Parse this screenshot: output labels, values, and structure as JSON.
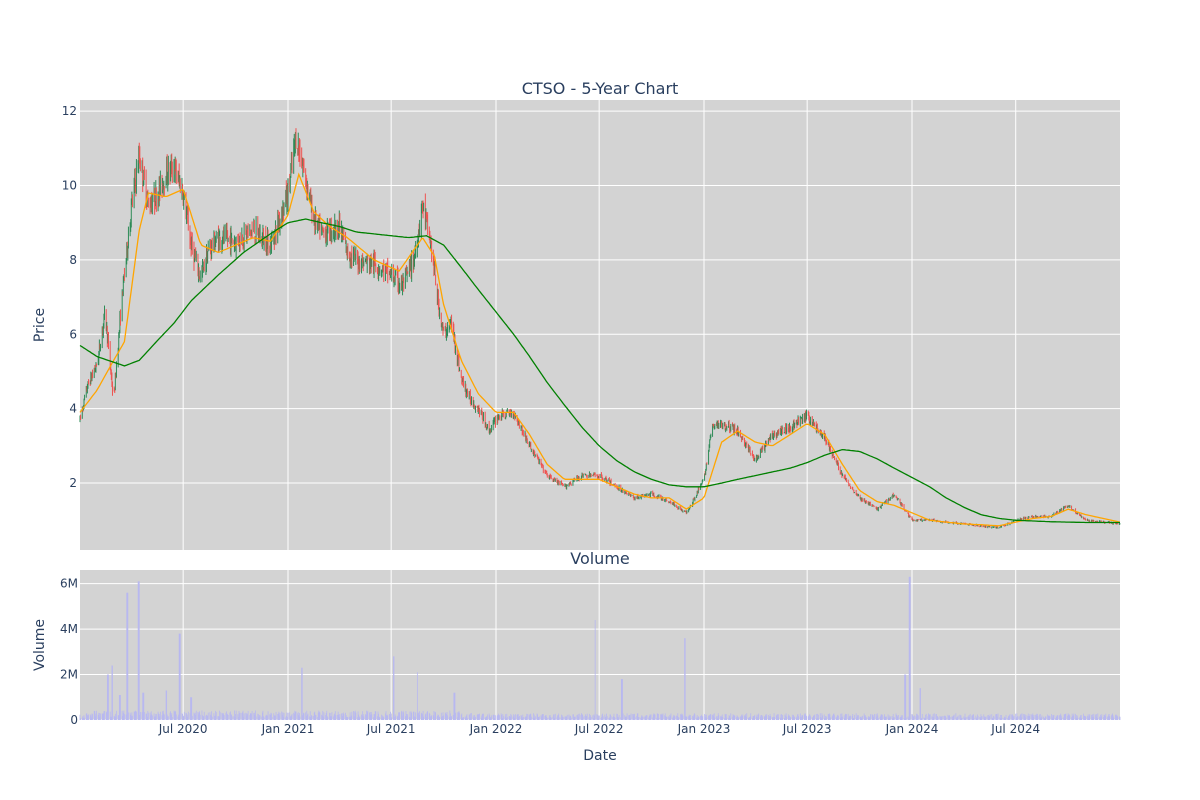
{
  "chart_data": [
    {
      "type": "candlestick",
      "title": "CTSO - 5-Year Chart",
      "ylabel": "Price",
      "ylim": [
        0.2,
        12.3
      ],
      "yticks": [
        2,
        4,
        6,
        8,
        10,
        12
      ],
      "xlim": [
        "2020-01-02",
        "2024-12-31"
      ],
      "grid": true,
      "background": "#d3d3d3",
      "colors": {
        "increasing": "#2e8b57",
        "decreasing": "#ef5350",
        "ma_short": "#ffa500",
        "ma_long": "#008000"
      },
      "close_anchors": [
        [
          "2020-01-02",
          3.7
        ],
        [
          "2020-01-15",
          4.6
        ],
        [
          "2020-02-01",
          5.2
        ],
        [
          "2020-02-15",
          6.6
        ],
        [
          "2020-03-01",
          4.2
        ],
        [
          "2020-03-15",
          6.9
        ],
        [
          "2020-04-01",
          9.4
        ],
        [
          "2020-04-15",
          10.8
        ],
        [
          "2020-05-01",
          9.5
        ],
        [
          "2020-05-15",
          9.7
        ],
        [
          "2020-06-01",
          10.3
        ],
        [
          "2020-06-15",
          10.5
        ],
        [
          "2020-07-01",
          9.8
        ],
        [
          "2020-07-15",
          8.4
        ],
        [
          "2020-08-01",
          7.5
        ],
        [
          "2020-08-15",
          8.3
        ],
        [
          "2020-09-01",
          8.6
        ],
        [
          "2020-10-01",
          8.5
        ],
        [
          "2020-11-01",
          8.8
        ],
        [
          "2020-12-01",
          8.4
        ],
        [
          "2020-12-15",
          9.0
        ],
        [
          "2021-01-01",
          9.8
        ],
        [
          "2021-01-15",
          11.3
        ],
        [
          "2021-02-01",
          10.2
        ],
        [
          "2021-02-15",
          9.1
        ],
        [
          "2021-03-01",
          8.7
        ],
        [
          "2021-04-01",
          8.9
        ],
        [
          "2021-04-15",
          8.2
        ],
        [
          "2021-05-01",
          8.0
        ],
        [
          "2021-06-01",
          7.9
        ],
        [
          "2021-07-01",
          7.6
        ],
        [
          "2021-07-20",
          7.3
        ],
        [
          "2021-08-10",
          8.0
        ],
        [
          "2021-08-25",
          9.5
        ],
        [
          "2021-09-10",
          8.3
        ],
        [
          "2021-09-20",
          7.0
        ],
        [
          "2021-10-01",
          6.0
        ],
        [
          "2021-10-15",
          6.3
        ],
        [
          "2021-11-01",
          4.8
        ],
        [
          "2021-11-15",
          4.3
        ],
        [
          "2021-12-01",
          4.0
        ],
        [
          "2021-12-20",
          3.4
        ],
        [
          "2022-01-05",
          3.8
        ],
        [
          "2022-02-01",
          3.9
        ],
        [
          "2022-03-01",
          3.0
        ],
        [
          "2022-04-01",
          2.2
        ],
        [
          "2022-05-01",
          1.9
        ],
        [
          "2022-06-01",
          2.2
        ],
        [
          "2022-07-01",
          2.2
        ],
        [
          "2022-08-01",
          1.9
        ],
        [
          "2022-09-01",
          1.6
        ],
        [
          "2022-10-01",
          1.7
        ],
        [
          "2022-11-01",
          1.5
        ],
        [
          "2022-12-01",
          1.2
        ],
        [
          "2022-12-15",
          1.6
        ],
        [
          "2023-01-01",
          2.1
        ],
        [
          "2023-01-15",
          3.5
        ],
        [
          "2023-02-01",
          3.6
        ],
        [
          "2023-03-01",
          3.4
        ],
        [
          "2023-04-01",
          2.6
        ],
        [
          "2023-05-01",
          3.3
        ],
        [
          "2023-06-01",
          3.5
        ],
        [
          "2023-07-01",
          3.8
        ],
        [
          "2023-08-01",
          3.2
        ],
        [
          "2023-09-01",
          2.2
        ],
        [
          "2023-10-01",
          1.6
        ],
        [
          "2023-11-01",
          1.3
        ],
        [
          "2023-12-01",
          1.7
        ],
        [
          "2024-01-01",
          1.0
        ],
        [
          "2024-02-01",
          1.0
        ],
        [
          "2024-03-01",
          0.95
        ],
        [
          "2024-04-01",
          0.9
        ],
        [
          "2024-05-01",
          0.85
        ],
        [
          "2024-06-01",
          0.8
        ],
        [
          "2024-07-01",
          1.0
        ],
        [
          "2024-08-01",
          1.1
        ],
        [
          "2024-09-01",
          1.1
        ],
        [
          "2024-10-01",
          1.4
        ],
        [
          "2024-11-01",
          1.0
        ],
        [
          "2024-12-01",
          0.95
        ],
        [
          "2024-12-31",
          0.9
        ]
      ],
      "ma_short_anchors": [
        [
          "2020-01-02",
          3.9
        ],
        [
          "2020-02-01",
          4.5
        ],
        [
          "2020-03-01",
          5.3
        ],
        [
          "2020-03-20",
          5.8
        ],
        [
          "2020-04-15",
          8.8
        ],
        [
          "2020-05-01",
          9.8
        ],
        [
          "2020-06-01",
          9.7
        ],
        [
          "2020-07-01",
          9.9
        ],
        [
          "2020-08-01",
          8.4
        ],
        [
          "2020-09-01",
          8.2
        ],
        [
          "2020-10-01",
          8.4
        ],
        [
          "2020-11-01",
          8.6
        ],
        [
          "2020-12-01",
          8.5
        ],
        [
          "2021-01-01",
          9.2
        ],
        [
          "2021-01-20",
          10.3
        ],
        [
          "2021-02-15",
          9.3
        ],
        [
          "2021-03-15",
          8.9
        ],
        [
          "2021-04-15",
          8.6
        ],
        [
          "2021-06-01",
          8.0
        ],
        [
          "2021-07-15",
          7.7
        ],
        [
          "2021-08-25",
          8.6
        ],
        [
          "2021-09-15",
          8.1
        ],
        [
          "2021-10-01",
          6.8
        ],
        [
          "2021-11-01",
          5.3
        ],
        [
          "2021-12-01",
          4.4
        ],
        [
          "2022-01-01",
          3.9
        ],
        [
          "2022-02-01",
          3.9
        ],
        [
          "2022-03-01",
          3.3
        ],
        [
          "2022-04-01",
          2.5
        ],
        [
          "2022-05-01",
          2.1
        ],
        [
          "2022-06-01",
          2.1
        ],
        [
          "2022-07-01",
          2.1
        ],
        [
          "2022-08-01",
          1.9
        ],
        [
          "2022-09-01",
          1.7
        ],
        [
          "2022-10-01",
          1.6
        ],
        [
          "2022-11-01",
          1.6
        ],
        [
          "2022-12-01",
          1.3
        ],
        [
          "2023-01-01",
          1.6
        ],
        [
          "2023-02-01",
          3.1
        ],
        [
          "2023-03-01",
          3.4
        ],
        [
          "2023-04-01",
          3.1
        ],
        [
          "2023-05-01",
          3.0
        ],
        [
          "2023-06-01",
          3.3
        ],
        [
          "2023-07-01",
          3.6
        ],
        [
          "2023-08-01",
          3.3
        ],
        [
          "2023-09-01",
          2.5
        ],
        [
          "2023-10-01",
          1.8
        ],
        [
          "2023-11-01",
          1.5
        ],
        [
          "2023-12-01",
          1.4
        ],
        [
          "2024-01-01",
          1.2
        ],
        [
          "2024-02-01",
          1.0
        ],
        [
          "2024-03-01",
          0.95
        ],
        [
          "2024-04-01",
          0.9
        ],
        [
          "2024-05-01",
          0.88
        ],
        [
          "2024-06-01",
          0.85
        ],
        [
          "2024-07-01",
          0.95
        ],
        [
          "2024-08-01",
          1.05
        ],
        [
          "2024-09-01",
          1.1
        ],
        [
          "2024-10-01",
          1.3
        ],
        [
          "2024-11-01",
          1.15
        ],
        [
          "2024-12-31",
          0.95
        ]
      ],
      "ma_long_anchors": [
        [
          "2020-01-02",
          5.7
        ],
        [
          "2020-02-01",
          5.4
        ],
        [
          "2020-03-01",
          5.25
        ],
        [
          "2020-03-20",
          5.15
        ],
        [
          "2020-04-15",
          5.3
        ],
        [
          "2020-05-15",
          5.8
        ],
        [
          "2020-06-15",
          6.3
        ],
        [
          "2020-07-15",
          6.9
        ],
        [
          "2020-09-01",
          7.6
        ],
        [
          "2020-10-15",
          8.2
        ],
        [
          "2020-12-01",
          8.7
        ],
        [
          "2021-01-01",
          9.0
        ],
        [
          "2021-02-01",
          9.1
        ],
        [
          "2021-03-01",
          9.0
        ],
        [
          "2021-04-01",
          8.9
        ],
        [
          "2021-05-01",
          8.75
        ],
        [
          "2021-06-01",
          8.7
        ],
        [
          "2021-07-01",
          8.65
        ],
        [
          "2021-08-01",
          8.6
        ],
        [
          "2021-09-01",
          8.65
        ],
        [
          "2021-10-01",
          8.4
        ],
        [
          "2021-11-01",
          7.8
        ],
        [
          "2021-12-01",
          7.2
        ],
        [
          "2022-01-01",
          6.6
        ],
        [
          "2022-02-01",
          6.0
        ],
        [
          "2022-03-01",
          5.4
        ],
        [
          "2022-04-01",
          4.7
        ],
        [
          "2022-05-01",
          4.1
        ],
        [
          "2022-06-01",
          3.5
        ],
        [
          "2022-07-01",
          3.0
        ],
        [
          "2022-08-01",
          2.6
        ],
        [
          "2022-09-01",
          2.3
        ],
        [
          "2022-10-01",
          2.1
        ],
        [
          "2022-11-01",
          1.95
        ],
        [
          "2022-12-01",
          1.9
        ],
        [
          "2023-01-01",
          1.9
        ],
        [
          "2023-02-01",
          2.0
        ],
        [
          "2023-03-01",
          2.1
        ],
        [
          "2023-04-01",
          2.2
        ],
        [
          "2023-05-01",
          2.3
        ],
        [
          "2023-06-01",
          2.4
        ],
        [
          "2023-07-01",
          2.55
        ],
        [
          "2023-08-01",
          2.75
        ],
        [
          "2023-09-01",
          2.9
        ],
        [
          "2023-10-01",
          2.85
        ],
        [
          "2023-11-01",
          2.65
        ],
        [
          "2023-12-01",
          2.4
        ],
        [
          "2024-01-01",
          2.15
        ],
        [
          "2024-02-01",
          1.9
        ],
        [
          "2024-03-01",
          1.6
        ],
        [
          "2024-04-01",
          1.35
        ],
        [
          "2024-05-01",
          1.15
        ],
        [
          "2024-06-01",
          1.05
        ],
        [
          "2024-07-01",
          1.0
        ],
        [
          "2024-08-01",
          0.98
        ],
        [
          "2024-09-01",
          0.96
        ],
        [
          "2024-10-01",
          0.95
        ],
        [
          "2024-11-01",
          0.94
        ],
        [
          "2024-12-31",
          0.94
        ]
      ]
    },
    {
      "type": "bar",
      "title": "Volume",
      "ylabel": "Volume",
      "xlabel": "Date",
      "ylim": [
        0,
        6600000
      ],
      "yticks": [
        {
          "value": 0,
          "label": "0"
        },
        {
          "value": 2000000,
          "label": "2M"
        },
        {
          "value": 4000000,
          "label": "4M"
        },
        {
          "value": 6000000,
          "label": "6M"
        }
      ],
      "xticks": [
        {
          "date": "2020-07-01",
          "label": "Jul 2020"
        },
        {
          "date": "2021-01-01",
          "label": "Jan 2021"
        },
        {
          "date": "2021-07-01",
          "label": "Jul 2021"
        },
        {
          "date": "2022-01-01",
          "label": "Jan 2022"
        },
        {
          "date": "2022-07-01",
          "label": "Jul 2022"
        },
        {
          "date": "2023-01-01",
          "label": "Jan 2023"
        },
        {
          "date": "2023-07-01",
          "label": "Jul 2023"
        },
        {
          "date": "2024-01-01",
          "label": "Jan 2024"
        },
        {
          "date": "2024-07-01",
          "label": "Jul 2024"
        }
      ],
      "bar_color": "#b8b8f0",
      "spikes": [
        [
          "2020-02-20",
          2000000
        ],
        [
          "2020-02-28",
          2400000
        ],
        [
          "2020-03-12",
          1100000
        ],
        [
          "2020-03-25",
          5600000
        ],
        [
          "2020-04-14",
          6100000
        ],
        [
          "2020-04-22",
          1200000
        ],
        [
          "2020-06-01",
          1300000
        ],
        [
          "2020-06-25",
          3800000
        ],
        [
          "2020-07-15",
          1000000
        ],
        [
          "2021-01-25",
          2300000
        ],
        [
          "2021-07-05",
          2800000
        ],
        [
          "2021-08-15",
          2100000
        ],
        [
          "2021-10-20",
          1200000
        ],
        [
          "2022-06-25",
          4400000
        ],
        [
          "2022-08-10",
          1800000
        ],
        [
          "2022-11-28",
          3600000
        ],
        [
          "2023-12-20",
          2000000
        ],
        [
          "2023-12-28",
          6300000
        ],
        [
          "2024-01-15",
          1400000
        ]
      ]
    }
  ]
}
